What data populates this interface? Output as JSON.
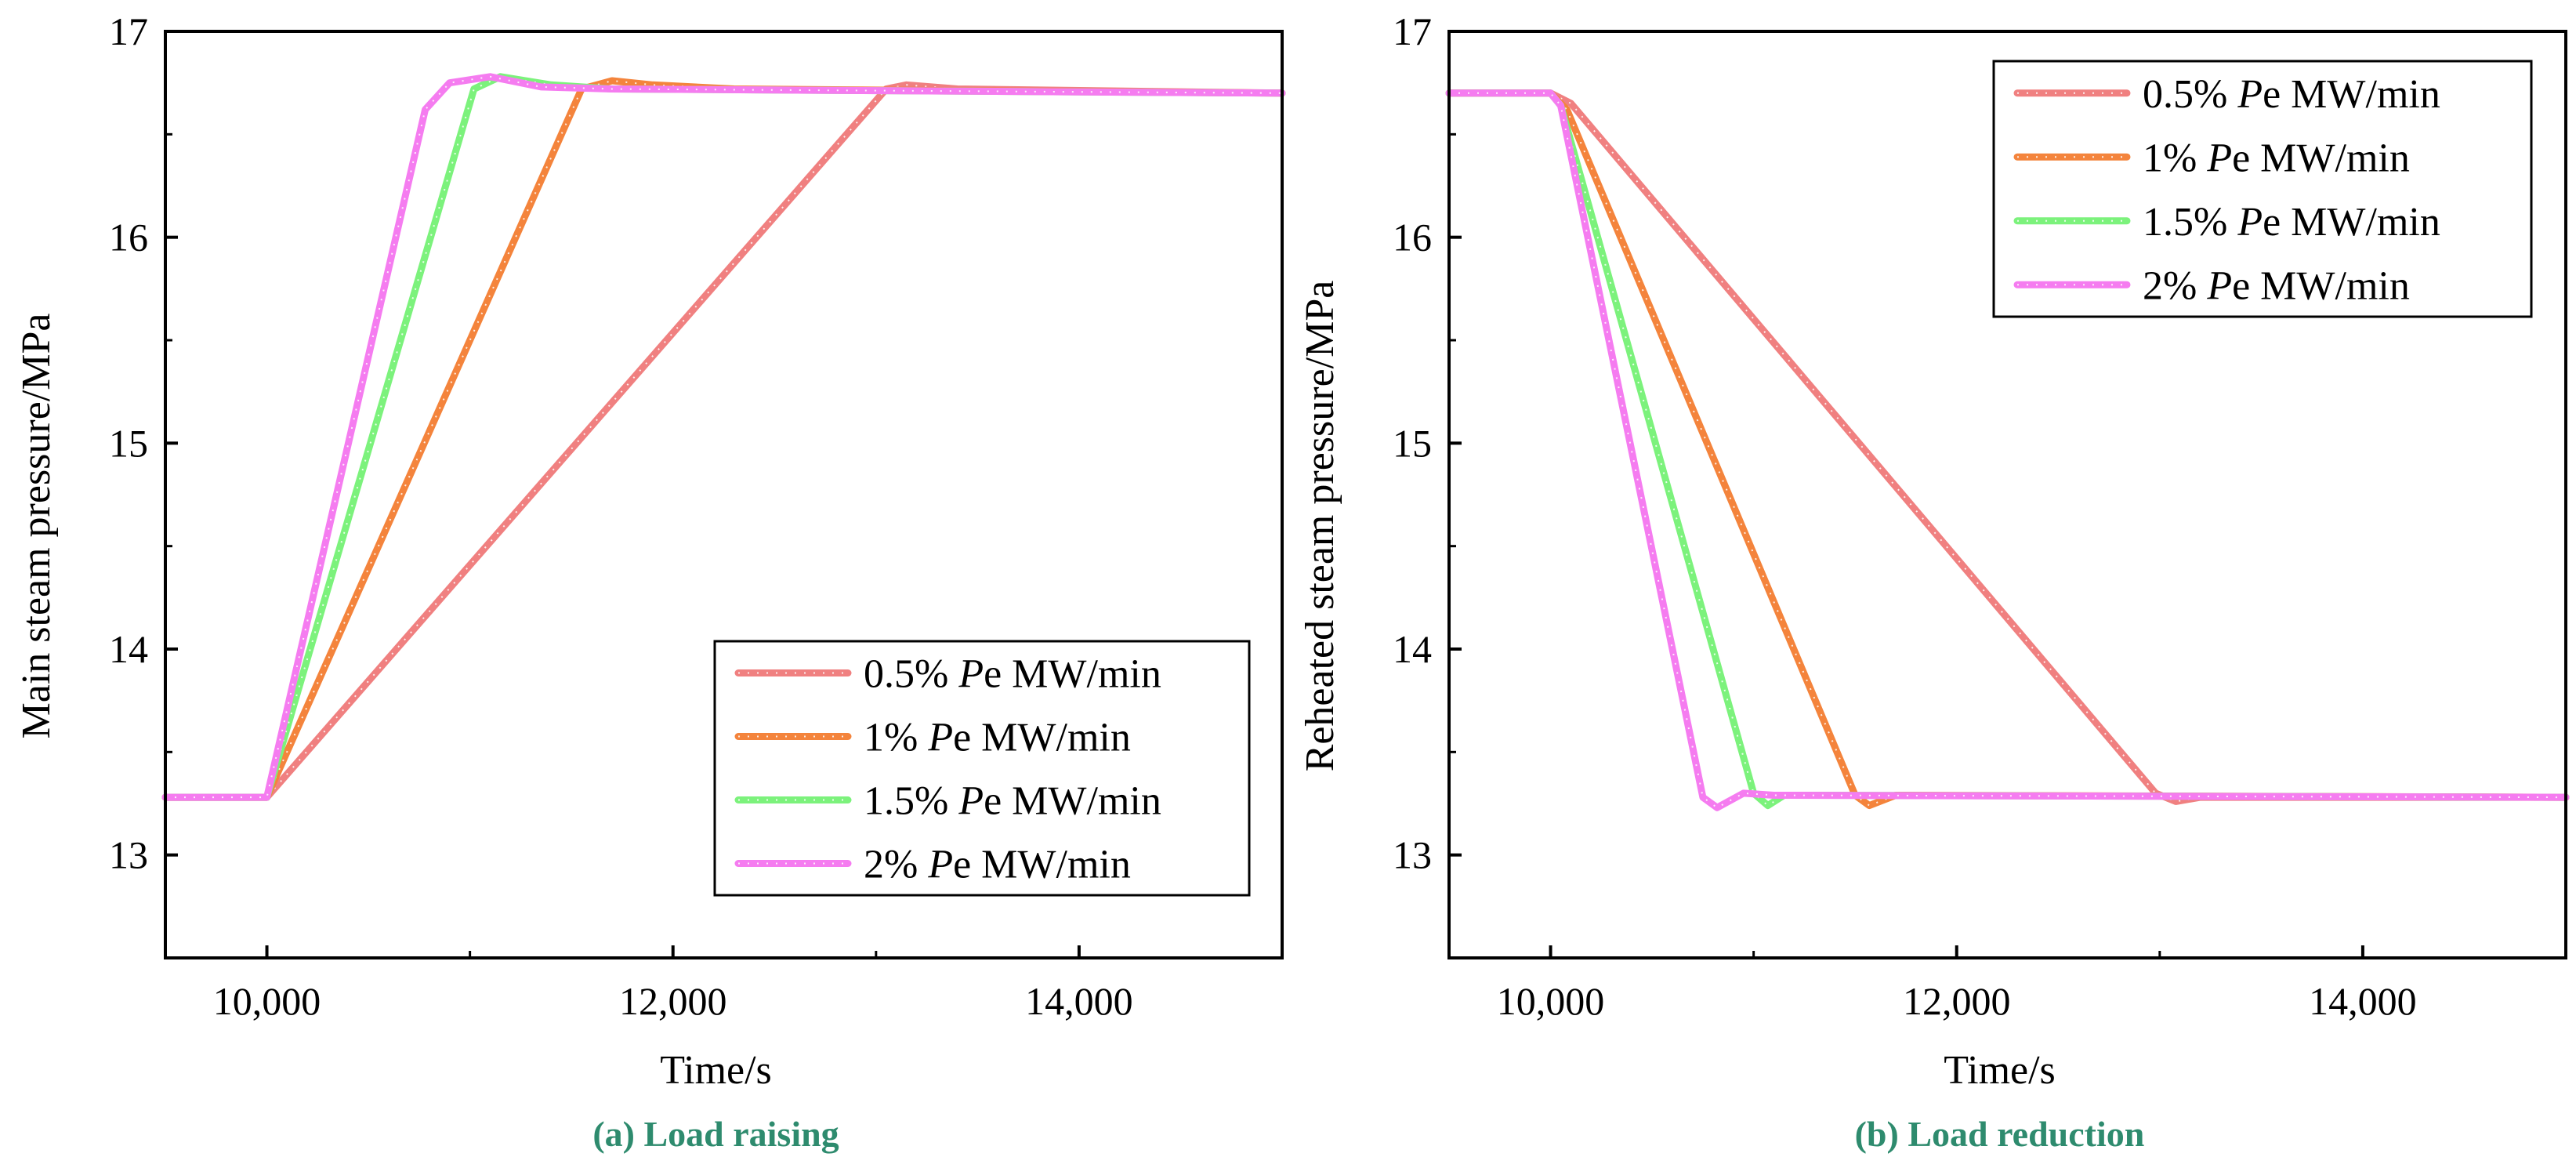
{
  "chart_data": [
    {
      "type": "line",
      "caption": "(a) Load raising",
      "xlabel": "Time/s",
      "ylabel": "Main steam pressure/MPa",
      "xlim": [
        9500,
        15000
      ],
      "ylim": [
        12.5,
        17
      ],
      "xticks": [
        10000,
        12000,
        14000
      ],
      "xtick_labels": [
        "10,000",
        "12,000",
        "14,000"
      ],
      "yticks": [
        13,
        14,
        15,
        16,
        17
      ],
      "ytick_labels": [
        "13",
        "14",
        "15",
        "16",
        "17"
      ],
      "legend_position": "bottom-right",
      "series": [
        {
          "name": "0.5% Pe MW/min",
          "prefix": "0.5% ",
          "italic": "P",
          "suffix": "e MW/min",
          "color": "#F08080",
          "x": [
            9500,
            10000,
            13050,
            13150,
            13400,
            15000
          ],
          "y": [
            13.28,
            13.28,
            16.72,
            16.74,
            16.72,
            16.7
          ]
        },
        {
          "name": "1% Pe MW/min",
          "prefix": "1% ",
          "italic": "P",
          "suffix": "e MW/min",
          "color": "#F4843C",
          "x": [
            9500,
            10000,
            11550,
            11700,
            11900,
            12300,
            15000
          ],
          "y": [
            13.28,
            13.28,
            16.72,
            16.76,
            16.74,
            16.72,
            16.7
          ]
        },
        {
          "name": "1.5% Pe MW/min",
          "prefix": "1.5% ",
          "italic": "P",
          "suffix": "e MW/min",
          "color": "#7CF27C",
          "x": [
            9500,
            10000,
            11020,
            11150,
            11400,
            11700,
            15000
          ],
          "y": [
            13.28,
            13.28,
            16.72,
            16.78,
            16.74,
            16.72,
            16.7
          ]
        },
        {
          "name": "2% Pe MW/min",
          "prefix": "2% ",
          "italic": "P",
          "suffix": "e MW/min",
          "color": "#F57CF0",
          "x": [
            9500,
            10000,
            10780,
            10900,
            11100,
            11350,
            11700,
            15000
          ],
          "y": [
            13.28,
            13.28,
            16.62,
            16.75,
            16.78,
            16.73,
            16.72,
            16.7
          ]
        }
      ]
    },
    {
      "type": "line",
      "caption": "(b) Load reduction",
      "xlabel": "Time/s",
      "ylabel": "Reheated steam pressure/MPa",
      "xlim": [
        9500,
        15000
      ],
      "ylim": [
        12.5,
        17
      ],
      "xticks": [
        10000,
        12000,
        14000
      ],
      "xtick_labels": [
        "10,000",
        "12,000",
        "14,000"
      ],
      "yticks": [
        13,
        14,
        15,
        16,
        17
      ],
      "ytick_labels": [
        "13",
        "14",
        "15",
        "16",
        "17"
      ],
      "legend_position": "top-right",
      "series": [
        {
          "name": "0.5% Pe MW/min",
          "prefix": "0.5% ",
          "italic": "P",
          "suffix": "e MW/min",
          "color": "#F08080",
          "x": [
            9500,
            10000,
            10100,
            12980,
            13080,
            13200,
            15000
          ],
          "y": [
            16.7,
            16.7,
            16.65,
            13.3,
            13.26,
            13.28,
            13.28
          ]
        },
        {
          "name": "1% Pe MW/min",
          "prefix": "1% ",
          "italic": "P",
          "suffix": "e MW/min",
          "color": "#F4843C",
          "x": [
            9500,
            10000,
            10080,
            11500,
            11570,
            11700,
            15000
          ],
          "y": [
            16.7,
            16.7,
            16.62,
            13.29,
            13.24,
            13.29,
            13.28
          ]
        },
        {
          "name": "1.5% Pe MW/min",
          "prefix": "1.5% ",
          "italic": "P",
          "suffix": "e MW/min",
          "color": "#7CF27C",
          "x": [
            9500,
            10000,
            10050,
            11000,
            11070,
            11150,
            11300,
            15000
          ],
          "y": [
            16.7,
            16.7,
            16.64,
            13.3,
            13.24,
            13.29,
            13.29,
            13.28
          ]
        },
        {
          "name": "2% Pe MW/min",
          "prefix": "2% ",
          "italic": "P",
          "suffix": "e MW/min",
          "color": "#F57CF0",
          "x": [
            9500,
            10000,
            10050,
            10750,
            10820,
            10950,
            11100,
            15000
          ],
          "y": [
            16.7,
            16.7,
            16.64,
            13.28,
            13.23,
            13.3,
            13.29,
            13.28
          ]
        }
      ]
    }
  ],
  "caption_color": "#2E8B6E"
}
